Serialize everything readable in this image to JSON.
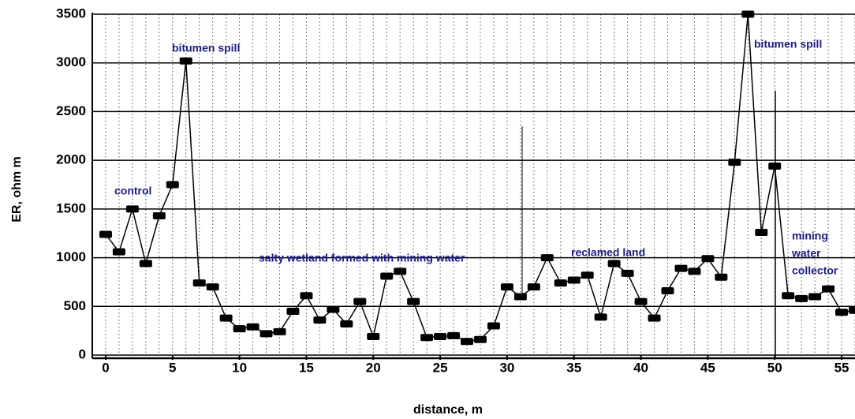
{
  "chart_data": {
    "type": "line",
    "x": [
      0,
      1,
      2,
      3,
      4,
      5,
      6,
      7,
      8,
      9,
      10,
      11,
      12,
      13,
      14,
      15,
      16,
      17,
      18,
      19,
      20,
      21,
      22,
      23,
      24,
      25,
      26,
      27,
      28,
      29,
      30,
      31,
      32,
      33,
      34,
      35,
      36,
      37,
      38,
      39,
      40,
      41,
      42,
      43,
      44,
      45,
      46,
      47,
      48,
      49,
      50,
      51,
      52,
      53,
      54,
      55,
      56
    ],
    "values": [
      1240,
      1060,
      1500,
      940,
      1430,
      1750,
      3020,
      740,
      700,
      380,
      270,
      290,
      220,
      240,
      450,
      610,
      360,
      470,
      320,
      550,
      190,
      810,
      860,
      550,
      180,
      190,
      200,
      140,
      160,
      300,
      700,
      600,
      700,
      1000,
      740,
      770,
      820,
      390,
      940,
      840,
      550,
      380,
      660,
      890,
      860,
      990,
      800,
      1980,
      3500,
      1260,
      1940,
      610,
      580,
      600,
      680,
      440,
      460
    ],
    "color": "#000000",
    "xlabel": "distance, m",
    "ylabel": "ER, ohm m",
    "xlim": [
      -1,
      56
    ],
    "ylim": [
      0,
      3500
    ],
    "xticks": [
      0,
      5,
      10,
      15,
      20,
      25,
      30,
      35,
      40,
      45,
      50,
      55
    ],
    "yticks": [
      0,
      500,
      1000,
      1500,
      2000,
      2500,
      3000,
      3500
    ],
    "grid": true,
    "annotations": [
      {
        "text": "bitumen spill"
      },
      {
        "text": "control"
      },
      {
        "text": "salty wetland formed with mining water"
      },
      {
        "text": "reclamed land"
      },
      {
        "text": "bitumen spill"
      },
      {
        "text": "mining"
      },
      {
        "text": "water"
      },
      {
        "text": "collector"
      }
    ]
  }
}
